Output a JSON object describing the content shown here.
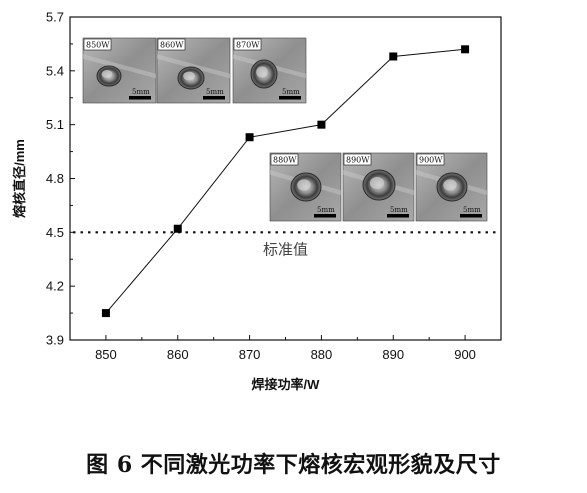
{
  "caption": "图 6  不同激光功率下熔核宏观形貌及尺寸",
  "chart_data": {
    "type": "line",
    "xlabel": "焊接功率/W",
    "ylabel": "熔核直径/mm",
    "x": [
      850,
      860,
      870,
      880,
      890,
      900
    ],
    "series": [
      {
        "values": [
          4.05,
          4.52,
          5.03,
          5.1,
          5.48,
          5.52
        ]
      }
    ],
    "xlim": [
      845,
      905
    ],
    "ylim": [
      3.9,
      5.7
    ],
    "xticks": [
      "850",
      "860",
      "870",
      "880",
      "890",
      "900"
    ],
    "yticks": [
      "3.9",
      "4.2",
      "4.5",
      "4.8",
      "5.1",
      "5.4",
      "5.7"
    ],
    "reference_line": {
      "y": 4.5,
      "label": "标准值",
      "style": "dotted"
    },
    "grid": false,
    "insets": [
      {
        "label": "850W",
        "scale": "5mm"
      },
      {
        "label": "860W",
        "scale": "5mm"
      },
      {
        "label": "870W",
        "scale": "5mm"
      },
      {
        "label": "880W",
        "scale": "5mm"
      },
      {
        "label": "890W",
        "scale": "5mm"
      },
      {
        "label": "900W",
        "scale": "5mm"
      }
    ]
  }
}
